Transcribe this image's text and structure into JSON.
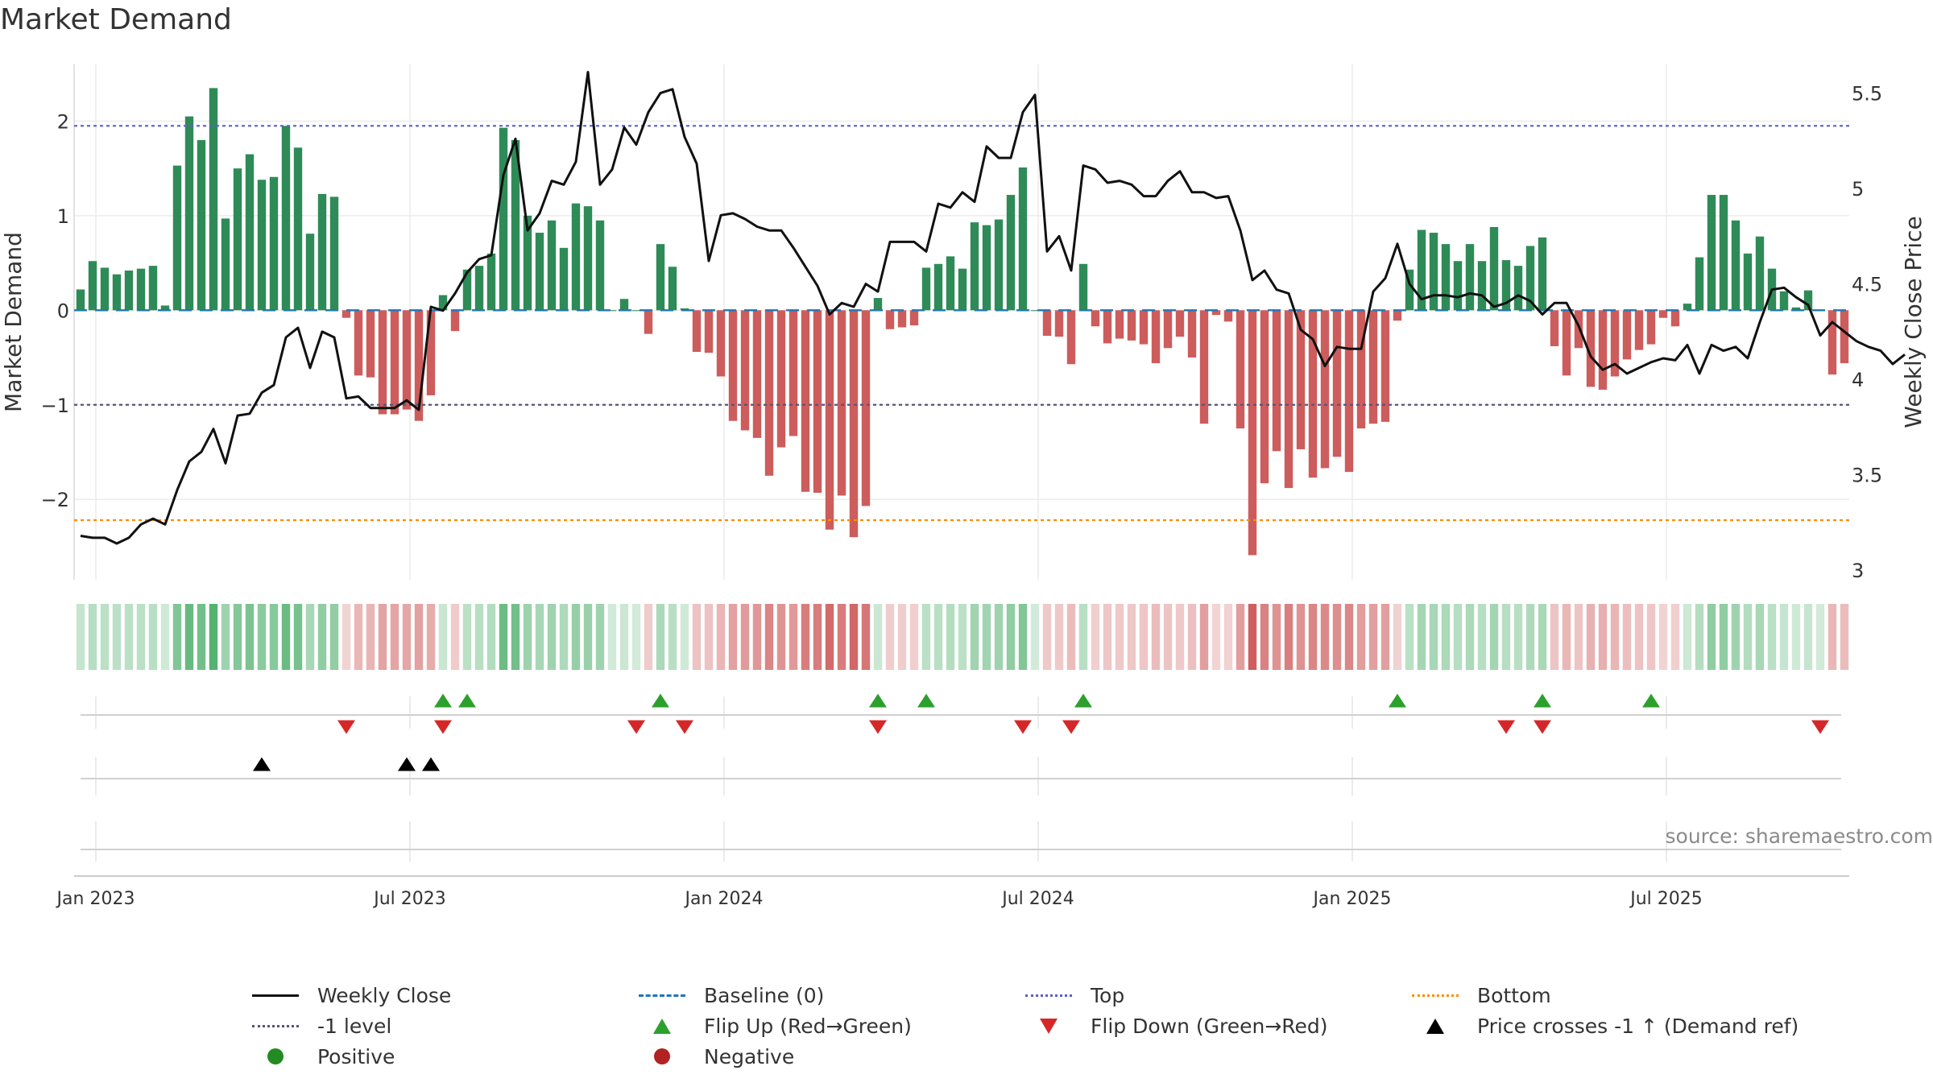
{
  "title": "Market Demand",
  "source": "source: sharemaestro.com",
  "legend": [
    {
      "label": "Weekly Close",
      "symbol": "line-solid"
    },
    {
      "label": "Baseline (0)",
      "symbol": "line-dash-blue"
    },
    {
      "label": "Top",
      "symbol": "line-dot-purple"
    },
    {
      "label": "Bottom",
      "symbol": "line-dot-orange"
    },
    {
      "label": "-1 level",
      "symbol": "line-dot-gray"
    },
    {
      "label": "Flip Up (Red→Green)",
      "symbol": "tri-up"
    },
    {
      "label": "Flip Down (Green→Red)",
      "symbol": "tri-down"
    },
    {
      "label": "Price crosses -1 ↑ (Demand ref)",
      "symbol": "tri-up-black"
    },
    {
      "label": "Positive",
      "symbol": "dot-green"
    },
    {
      "label": "Negative",
      "symbol": "dot-red"
    }
  ],
  "colors": {
    "positive": "#2e8b57",
    "negative": "#cd5c5c",
    "price_line": "#111111",
    "top_line": "#5b5fc7",
    "bottom_line": "#ff8c00",
    "minus1_line": "#555577",
    "baseline": "#1f77b4",
    "flip_up": "#2ca02c",
    "flip_down": "#d62728",
    "cross_marker": "#000000"
  },
  "chart_data": {
    "type": "bar",
    "title": "Market Demand",
    "ylabel": "Market Demand",
    "y2label": "Weekly Close Price",
    "start_date": "2022-12-26",
    "ylim": [
      -2.85,
      2.6
    ],
    "y2lim": [
      2.95,
      5.65
    ],
    "yticks": [
      2,
      1,
      0,
      -1,
      -2
    ],
    "ytick_labels": [
      "2",
      "1",
      "0",
      "−1",
      "−2"
    ],
    "y2ticks": [
      5.5,
      5,
      4.5,
      4,
      3.5,
      3
    ],
    "y2tick_labels": [
      "5.5",
      "5",
      "4.5",
      "4",
      "3.5",
      "3"
    ],
    "xtick_labels": [
      "Jan 2023",
      "Jul 2023",
      "Jan 2024",
      "Jul 2024",
      "Jan 2025",
      "Jul 2025"
    ],
    "xtick_weeks": [
      1,
      27,
      53,
      79,
      105,
      131
    ],
    "reference_lines": {
      "top": 1.95,
      "bottom": -2.22,
      "minus_one": -1.0,
      "baseline": 0
    },
    "demand": [
      0.22,
      0.52,
      0.45,
      0.38,
      0.42,
      0.44,
      0.47,
      0.05,
      1.53,
      2.05,
      1.8,
      2.35,
      0.97,
      1.5,
      1.65,
      1.38,
      1.41,
      1.95,
      1.72,
      0.81,
      1.23,
      1.2,
      -0.08,
      -0.69,
      -0.71,
      -1.1,
      -1.1,
      -1.05,
      -1.17,
      -0.9,
      0.16,
      -0.22,
      0.43,
      0.47,
      0.6,
      1.93,
      1.8,
      1.0,
      0.82,
      0.95,
      0.66,
      1.13,
      1.1,
      0.95,
      0.0,
      0.12,
      0.0,
      -0.25,
      0.7,
      0.46,
      0.02,
      -0.44,
      -0.45,
      -0.7,
      -1.17,
      -1.27,
      -1.35,
      -1.75,
      -1.45,
      -1.33,
      -1.92,
      -1.93,
      -2.32,
      -1.96,
      -2.4,
      -2.07,
      0.13,
      -0.2,
      -0.18,
      -0.16,
      0.45,
      0.49,
      0.57,
      0.44,
      0.93,
      0.9,
      0.96,
      1.22,
      1.51,
      0.0,
      -0.27,
      -0.28,
      -0.57,
      0.49,
      -0.17,
      -0.35,
      -0.3,
      -0.32,
      -0.36,
      -0.56,
      -0.4,
      -0.28,
      -0.5,
      -1.2,
      -0.05,
      -0.12,
      -1.25,
      -2.59,
      -1.83,
      -1.49,
      -1.88,
      -1.47,
      -1.77,
      -1.67,
      -1.55,
      -1.71,
      -1.25,
      -1.2,
      -1.18,
      -0.11,
      0.43,
      0.85,
      0.82,
      0.7,
      0.52,
      0.7,
      0.52,
      0.88,
      0.53,
      0.47,
      0.68,
      0.77,
      -0.38,
      -0.69,
      -0.4,
      -0.81,
      -0.84,
      -0.7,
      -0.52,
      -0.42,
      -0.36,
      -0.08,
      -0.17,
      0.07,
      0.56,
      1.22,
      1.22,
      0.95,
      0.6,
      0.78,
      0.44,
      0.2,
      0.03,
      0.21,
      0.0,
      -0.68,
      -0.56
    ],
    "weekly_close": [
      3.18,
      3.17,
      3.17,
      3.14,
      3.17,
      3.24,
      3.27,
      3.24,
      3.42,
      3.57,
      3.62,
      3.74,
      3.56,
      3.81,
      3.82,
      3.93,
      3.97,
      4.22,
      4.27,
      4.06,
      4.25,
      4.22,
      3.9,
      3.91,
      3.85,
      3.85,
      3.85,
      3.89,
      3.84,
      4.38,
      4.36,
      4.45,
      4.56,
      4.63,
      4.65,
      5.07,
      5.26,
      4.78,
      4.87,
      5.04,
      5.02,
      5.14,
      5.61,
      5.02,
      5.1,
      5.32,
      5.23,
      5.4,
      5.5,
      5.52,
      5.27,
      5.13,
      4.62,
      4.86,
      4.87,
      4.84,
      4.8,
      4.78,
      4.78,
      4.69,
      4.59,
      4.49,
      4.34,
      4.4,
      4.38,
      4.5,
      4.46,
      4.72,
      4.72,
      4.72,
      4.67,
      4.92,
      4.9,
      4.98,
      4.93,
      5.22,
      5.16,
      5.16,
      5.4,
      5.49,
      4.67,
      4.75,
      4.57,
      5.12,
      5.1,
      5.03,
      5.04,
      5.02,
      4.96,
      4.96,
      5.04,
      5.09,
      4.98,
      4.98,
      4.95,
      4.96,
      4.78,
      4.52,
      4.57,
      4.47,
      4.45,
      4.26,
      4.21,
      4.07,
      4.17,
      4.16,
      4.16,
      4.46,
      4.53,
      4.71,
      4.5,
      4.42,
      4.44,
      4.44,
      4.43,
      4.45,
      4.44,
      4.38,
      4.4,
      4.44,
      4.41,
      4.34,
      4.4,
      4.4,
      4.28,
      4.12,
      4.05,
      4.08,
      4.03,
      4.06,
      4.09,
      4.11,
      4.1,
      4.18,
      4.03,
      4.18,
      4.15,
      4.17,
      4.11,
      4.3,
      4.47,
      4.48,
      4.43,
      4.39,
      4.23,
      4.3,
      4.25,
      4.2,
      4.17,
      4.15,
      4.08,
      4.13
    ],
    "flip_up_weeks": [
      30,
      32,
      48,
      66,
      70,
      83,
      109,
      121,
      130
    ],
    "flip_down_weeks": [
      22,
      30,
      46,
      50,
      66,
      78,
      82,
      118,
      121,
      144
    ],
    "price_cross_weeks": [
      15,
      27,
      29
    ]
  }
}
